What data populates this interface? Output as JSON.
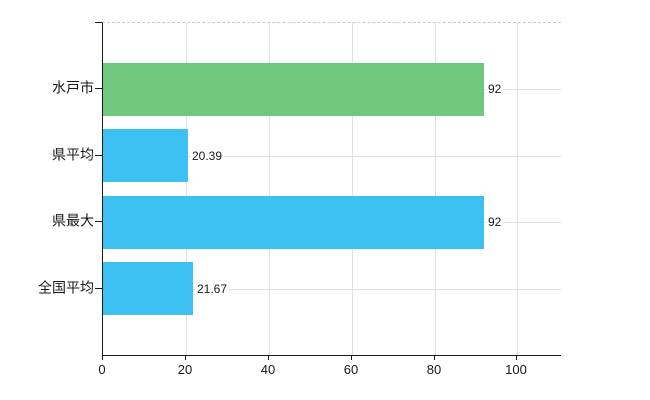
{
  "chart_data": {
    "type": "bar",
    "orientation": "horizontal",
    "title": "",
    "categories": [
      "水戸市",
      "県平均",
      "県最大",
      "全国平均"
    ],
    "values": [
      92,
      20.39,
      92,
      21.67
    ],
    "value_labels": [
      "92",
      "20.39",
      "92",
      "21.67"
    ],
    "bar_colors": [
      "#6ec97f",
      "#3cc1f2",
      "#3cc1f2",
      "#3cc1f2"
    ],
    "xticks": [
      "0",
      "20",
      "40",
      "60",
      "80",
      "100"
    ],
    "xtick_values": [
      0,
      20,
      40,
      60,
      80,
      100
    ],
    "xlim": [
      0,
      110.5
    ],
    "grid": true,
    "legend": false,
    "colors": {
      "axis": "#1a1a1a",
      "grid": "#e0e0e0",
      "grid_dashed": "#c9c9c9",
      "text": "#1a1a1a",
      "background": "#ffffff"
    }
  }
}
